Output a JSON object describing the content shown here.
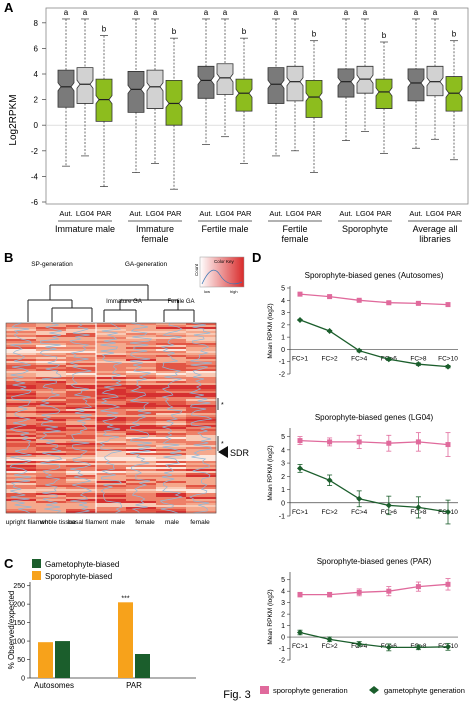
{
  "figure_label": "Fig. 3",
  "colors": {
    "gray_dark": "#7a7a7a",
    "gray_light": "#d2d2d2",
    "green": "#8dbd1e",
    "orange": "#f7a21b",
    "dark_green": "#1b5e2c",
    "pink": "#e06a9c",
    "heat_red": "#d92b2b",
    "heat_light": "#fde4d8",
    "heat_blue": "#8fb8d8"
  },
  "panelA": {
    "letter": "A",
    "ylabel": "Log2RPKM",
    "yticks": [
      "8",
      "6",
      "4",
      "2",
      "0",
      "-2",
      "-4",
      "-6"
    ],
    "sig_letters": [
      "a",
      "a",
      "b",
      "a",
      "a",
      "b",
      "a",
      "a",
      "b",
      "a",
      "a",
      "b",
      "a",
      "a",
      "b",
      "a",
      "a",
      "b"
    ],
    "box_labels": [
      "Aut.",
      "LG04",
      "PAR",
      "Aut.",
      "LG04",
      "PAR",
      "Aut.",
      "LG04",
      "PAR",
      "Aut.",
      "LG04",
      "PAR",
      "Aut.",
      "LG04",
      "PAR",
      "Aut.",
      "LG04",
      "PAR"
    ],
    "groups": [
      "Immature male",
      "Immature female",
      "Fertile male",
      "Fertile female",
      "Sporophyte",
      "Average all libraries"
    ]
  },
  "panelB": {
    "letter": "B",
    "tree_labels": {
      "sp": "SP-generation",
      "ga": "GA-generation",
      "imm": "Immature GA",
      "fert": "Fertile GA"
    },
    "col_labels": [
      "upright filament",
      "whole tissue",
      "basal filament",
      "male",
      "female",
      "male",
      "female"
    ],
    "sdr_label": "SDR",
    "star": "*",
    "legend": {
      "title": "Color Key",
      "count": "Count",
      "low": "low",
      "high": "high"
    }
  },
  "panelC": {
    "letter": "C",
    "legend": [
      "Gametophyte-biased",
      "Sporophyte-biased"
    ],
    "ylabel": "% Observed/expected",
    "yticks": [
      "0",
      "50",
      "100",
      "150",
      "200",
      "250"
    ],
    "significance": "***"
  },
  "panelD": {
    "letter": "D",
    "ylabel": "Mean RPKM (log2)",
    "legend_sp": "sporophyte generation",
    "legend_ga": "gametophyte generation",
    "subplots": [
      {
        "title": "Sporophyte-biased genes (Autosomes)",
        "yticks": [
          "5",
          "4",
          "3",
          "2",
          "1",
          "0",
          "-1",
          "-2"
        ]
      },
      {
        "title": "Sporophyte-biased genes (LG04)",
        "yticks": [
          "5",
          "4",
          "3",
          "2",
          "1",
          "0",
          "-1"
        ]
      },
      {
        "title": "Sporophyte-biased genes (PAR)",
        "yticks": [
          "5",
          "4",
          "3",
          "2",
          "1",
          "0",
          "-1",
          "-2"
        ]
      }
    ]
  },
  "chart_data": [
    {
      "type": "box",
      "title": "",
      "xlabel": "",
      "ylabel": "Log2RPKM",
      "ylim": [
        -6,
        9
      ],
      "groups": [
        "Immature male",
        "Immature female",
        "Fertile male",
        "Fertile female",
        "Sporophyte",
        "Average all libraries"
      ],
      "categories": [
        "Aut.",
        "LG04",
        "PAR"
      ],
      "boxes": [
        {
          "group": "Immature male",
          "category": "Aut.",
          "q1": 1.4,
          "median": 3.0,
          "q3": 4.3,
          "whisker_low": -3.2,
          "whisker_high": 8.3,
          "sig": "a"
        },
        {
          "group": "Immature male",
          "category": "LG04",
          "q1": 1.7,
          "median": 3.2,
          "q3": 4.5,
          "whisker_low": -2.4,
          "whisker_high": 8.3,
          "sig": "a"
        },
        {
          "group": "Immature male",
          "category": "PAR",
          "q1": 0.3,
          "median": 2.0,
          "q3": 3.6,
          "whisker_low": -4.8,
          "whisker_high": 7.0,
          "sig": "b"
        },
        {
          "group": "Immature female",
          "category": "Aut.",
          "q1": 1.0,
          "median": 2.8,
          "q3": 4.2,
          "whisker_low": -3.7,
          "whisker_high": 8.3,
          "sig": "a"
        },
        {
          "group": "Immature female",
          "category": "LG04",
          "q1": 1.3,
          "median": 3.0,
          "q3": 4.3,
          "whisker_low": -3.0,
          "whisker_high": 8.3,
          "sig": "a"
        },
        {
          "group": "Immature female",
          "category": "PAR",
          "q1": 0.0,
          "median": 1.7,
          "q3": 3.5,
          "whisker_low": -5.0,
          "whisker_high": 6.8,
          "sig": "b"
        },
        {
          "group": "Fertile male",
          "category": "Aut.",
          "q1": 2.1,
          "median": 3.5,
          "q3": 4.6,
          "whisker_low": -1.5,
          "whisker_high": 8.3,
          "sig": "a"
        },
        {
          "group": "Fertile male",
          "category": "LG04",
          "q1": 2.4,
          "median": 3.7,
          "q3": 4.8,
          "whisker_low": -0.9,
          "whisker_high": 8.3,
          "sig": "a"
        },
        {
          "group": "Fertile male",
          "category": "PAR",
          "q1": 1.1,
          "median": 2.5,
          "q3": 3.6,
          "whisker_low": -3.0,
          "whisker_high": 6.8,
          "sig": "b"
        },
        {
          "group": "Fertile female",
          "category": "Aut.",
          "q1": 1.7,
          "median": 3.2,
          "q3": 4.5,
          "whisker_low": -2.4,
          "whisker_high": 8.3,
          "sig": "a"
        },
        {
          "group": "Fertile female",
          "category": "LG04",
          "q1": 1.9,
          "median": 3.4,
          "q3": 4.6,
          "whisker_low": -2.0,
          "whisker_high": 8.3,
          "sig": "a"
        },
        {
          "group": "Fertile female",
          "category": "PAR",
          "q1": 0.6,
          "median": 2.2,
          "q3": 3.5,
          "whisker_low": -3.7,
          "whisker_high": 6.6,
          "sig": "b"
        },
        {
          "group": "Sporophyte",
          "category": "Aut.",
          "q1": 2.2,
          "median": 3.4,
          "q3": 4.4,
          "whisker_low": -1.2,
          "whisker_high": 8.3,
          "sig": "a"
        },
        {
          "group": "Sporophyte",
          "category": "LG04",
          "q1": 2.5,
          "median": 3.6,
          "q3": 4.6,
          "whisker_low": -0.5,
          "whisker_high": 8.3,
          "sig": "a"
        },
        {
          "group": "Sporophyte",
          "category": "PAR",
          "q1": 1.3,
          "median": 2.6,
          "q3": 3.6,
          "whisker_low": -2.2,
          "whisker_high": 6.5,
          "sig": "b"
        },
        {
          "group": "Average all libraries",
          "category": "Aut.",
          "q1": 1.9,
          "median": 3.3,
          "q3": 4.4,
          "whisker_low": -1.8,
          "whisker_high": 8.3,
          "sig": "a"
        },
        {
          "group": "Average all libraries",
          "category": "LG04",
          "q1": 2.3,
          "median": 3.4,
          "q3": 4.6,
          "whisker_low": -1.1,
          "whisker_high": 8.3,
          "sig": "a"
        },
        {
          "group": "Average all libraries",
          "category": "PAR",
          "q1": 1.1,
          "median": 2.5,
          "q3": 3.8,
          "whisker_low": -2.7,
          "whisker_high": 6.6,
          "sig": "b"
        }
      ]
    },
    {
      "type": "heatmap",
      "title": "",
      "columns": [
        "upright filament",
        "whole tissue",
        "basal filament",
        "male",
        "female",
        "male",
        "female"
      ],
      "annotations": [
        "SDR",
        "*",
        "*"
      ],
      "dendrogram": [
        "SP-generation",
        "GA-generation",
        "Immature GA",
        "Fertile GA"
      ],
      "legend_position": "top-right"
    },
    {
      "type": "bar",
      "title": "",
      "categories": [
        "Autosomes",
        "PAR"
      ],
      "series": [
        {
          "name": "Gametophyte-biased",
          "values": [
            100,
            65
          ]
        },
        {
          "name": "Sporophyte-biased",
          "values": [
            97,
            205
          ]
        }
      ],
      "ylabel": "% Observed/expected",
      "ylim": [
        0,
        260
      ],
      "annotations": [
        "***"
      ],
      "legend_position": "top-left"
    },
    {
      "type": "line",
      "title": "Sporophyte-biased genes (Autosomes)",
      "x": [
        "FC>1",
        "FC>2",
        "FC>4",
        "FC>6",
        "FC>8",
        "FC>10"
      ],
      "ylabel": "Mean RPKM (log2)",
      "ylim": [
        -2,
        5
      ],
      "series": [
        {
          "name": "sporophyte generation",
          "values": [
            4.5,
            4.3,
            4.0,
            3.8,
            3.75,
            3.65
          ],
          "err": [
            0.05,
            0.05,
            0.05,
            0.1,
            0.1,
            0.1
          ]
        },
        {
          "name": "gametophyte generation",
          "values": [
            2.4,
            1.5,
            -0.1,
            -0.8,
            -1.2,
            -1.4
          ],
          "err": [
            0.05,
            0.05,
            0.1,
            0.1,
            0.1,
            0.1
          ]
        }
      ]
    },
    {
      "type": "line",
      "title": "Sporophyte-biased genes (LG04)",
      "x": [
        "FC>1",
        "FC>2",
        "FC>4",
        "FC>6",
        "FC>8",
        "FC>10"
      ],
      "ylabel": "Mean RPKM (log2)",
      "ylim": [
        -1,
        5.5
      ],
      "series": [
        {
          "name": "sporophyte generation",
          "values": [
            4.7,
            4.6,
            4.6,
            4.5,
            4.6,
            4.4
          ],
          "err": [
            0.3,
            0.3,
            0.5,
            0.6,
            0.7,
            0.9
          ]
        },
        {
          "name": "gametophyte generation",
          "values": [
            2.6,
            1.7,
            0.3,
            -0.2,
            -0.35,
            -0.7
          ],
          "err": [
            0.3,
            0.4,
            0.6,
            0.7,
            0.8,
            0.9
          ]
        }
      ]
    },
    {
      "type": "line",
      "title": "Sporophyte-biased genes (PAR)",
      "x": [
        "FC>1",
        "FC>2",
        "FC>4",
        "FC>6",
        "FC>8",
        "FC>10"
      ],
      "ylabel": "Mean RPKM (log2)",
      "ylim": [
        -2,
        5.5
      ],
      "series": [
        {
          "name": "sporophyte generation",
          "values": [
            3.7,
            3.7,
            3.9,
            4.0,
            4.4,
            4.6
          ],
          "err": [
            0.2,
            0.2,
            0.3,
            0.4,
            0.4,
            0.5
          ]
        },
        {
          "name": "gametophyte generation",
          "values": [
            0.4,
            -0.2,
            -0.6,
            -0.9,
            -0.9,
            -0.85
          ],
          "err": [
            0.2,
            0.2,
            0.2,
            0.3,
            0.2,
            0.3
          ]
        }
      ]
    }
  ]
}
